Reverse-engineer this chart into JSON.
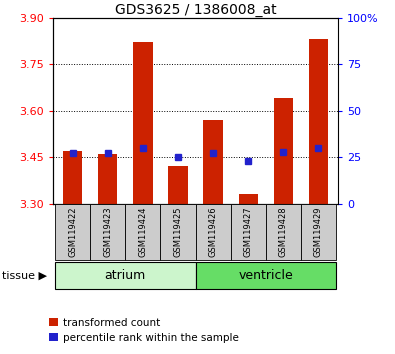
{
  "title": "GDS3625 / 1386008_at",
  "samples": [
    "GSM119422",
    "GSM119423",
    "GSM119424",
    "GSM119425",
    "GSM119426",
    "GSM119427",
    "GSM119428",
    "GSM119429"
  ],
  "red_values": [
    3.47,
    3.46,
    3.82,
    3.42,
    3.57,
    3.33,
    3.64,
    3.83
  ],
  "blue_pct": [
    27,
    27,
    30,
    25,
    27,
    23,
    28,
    30
  ],
  "ylim_left": [
    3.3,
    3.9
  ],
  "ylim_right": [
    0,
    100
  ],
  "yticks_left": [
    3.3,
    3.45,
    3.6,
    3.75,
    3.9
  ],
  "yticks_right": [
    0,
    25,
    50,
    75,
    100
  ],
  "groups": [
    {
      "label": "atrium",
      "start": 0,
      "end": 3,
      "color": "#ccf5cc"
    },
    {
      "label": "ventricle",
      "start": 4,
      "end": 7,
      "color": "#66dd66"
    }
  ],
  "bar_bottom": 3.3,
  "legend_red": "transformed count",
  "legend_blue": "percentile rank within the sample",
  "tissue_label": "tissue ▶",
  "bar_color_red": "#cc2200",
  "bar_color_blue": "#2222cc",
  "bg_color": "#ffffff",
  "sample_bg": "#cccccc"
}
